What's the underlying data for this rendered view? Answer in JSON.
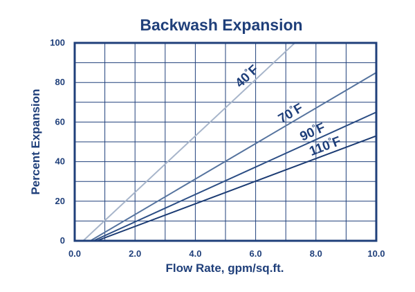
{
  "colors": {
    "text": "#1f3f7a",
    "frame": "#1f3f7a",
    "grid": "#1f3f7a"
  },
  "chart_data": {
    "type": "line",
    "title": "Backwash Expansion",
    "xlabel": "Flow Rate, gpm/sq.ft.",
    "ylabel": "Percent Expansion",
    "xlim": [
      0,
      10
    ],
    "ylim": [
      0,
      100
    ],
    "x_ticks": [
      "0.0",
      "2.0",
      "4.0",
      "6.0",
      "8.0",
      "10.0"
    ],
    "x_tick_values": [
      0,
      2,
      4,
      6,
      8,
      10
    ],
    "y_ticks": [
      "0",
      "20",
      "40",
      "60",
      "80",
      "100"
    ],
    "y_tick_values": [
      0,
      20,
      40,
      60,
      80,
      100
    ],
    "grid": true,
    "series": [
      {
        "name": "40",
        "unit": "°F",
        "color": "#a7b5ca",
        "x": [
          0.28,
          7.3
        ],
        "y": [
          0,
          100
        ]
      },
      {
        "name": "70",
        "unit": "°F",
        "color": "#55739e",
        "x": [
          0.52,
          10.0
        ],
        "y": [
          0,
          85
        ]
      },
      {
        "name": "90",
        "unit": "°F",
        "color": "#2b4d84",
        "x": [
          0.62,
          10.0
        ],
        "y": [
          0,
          65
        ]
      },
      {
        "name": "110",
        "unit": "°F",
        "color": "#1a3a72",
        "x": [
          0.73,
          10.0
        ],
        "y": [
          0,
          53
        ]
      }
    ]
  }
}
